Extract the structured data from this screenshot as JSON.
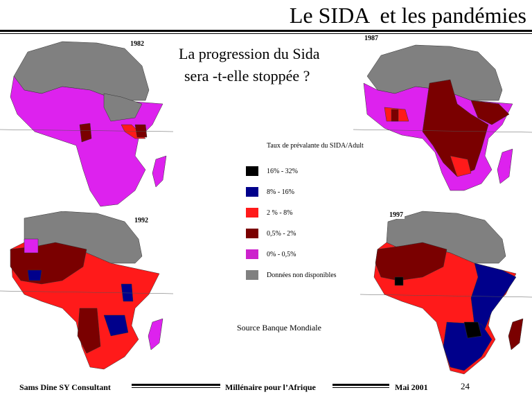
{
  "header": {
    "title": "Le SIDA  et les pandémies"
  },
  "question": {
    "line1": "La progression du Sida",
    "line2": "sera -t-elle stoppée ?"
  },
  "maps": [
    {
      "year": "1982"
    },
    {
      "year": "1987"
    },
    {
      "year": "1992"
    },
    {
      "year": "1997"
    }
  ],
  "legend": {
    "title": "Taux de prévalante du SIDA/Adult",
    "items": [
      {
        "label": "16% - 32%",
        "color": "#000000"
      },
      {
        "label": "8% -  16%",
        "color": "#00008b"
      },
      {
        "label": "2 % - 8%",
        "color": "#ff1a1a"
      },
      {
        "label": "0,5% - 2%",
        "color": "#7a0000"
      },
      {
        "label": "0% - 0,5%",
        "color": "#cc22cc"
      },
      {
        "label": "Données non disponibles",
        "color": "#808080"
      }
    ]
  },
  "source": "Source Banque Mondiale",
  "footer": {
    "left": "Sams Dine SY Consultant",
    "center": "Millénaire pour l’Afrique",
    "right": "Mai 2001",
    "page": "24"
  }
}
